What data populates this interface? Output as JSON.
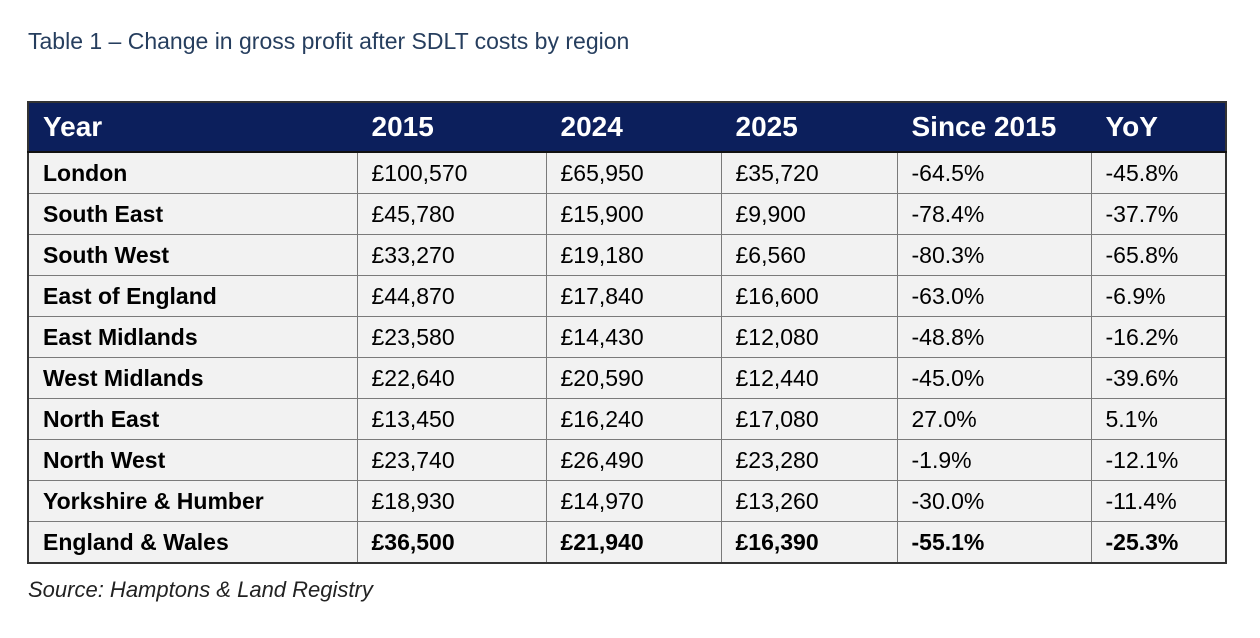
{
  "title": "Table 1 – Change in gross profit after SDLT costs by region",
  "headers": [
    "Year",
    "2015",
    "2024",
    "2025",
    "Since 2015",
    "YoY"
  ],
  "rows": [
    [
      "London",
      "£100,570",
      "£65,950",
      "£35,720",
      "-64.5%",
      "-45.8%"
    ],
    [
      "South East",
      "£45,780",
      "£15,900",
      "£9,900",
      "-78.4%",
      "-37.7%"
    ],
    [
      "South West",
      "£33,270",
      "£19,180",
      "£6,560",
      "-80.3%",
      "-65.8%"
    ],
    [
      "East of England",
      "£44,870",
      "£17,840",
      "£16,600",
      "-63.0%",
      "-6.9%"
    ],
    [
      "East Midlands",
      "£23,580",
      "£14,430",
      "£12,080",
      "-48.8%",
      "-16.2%"
    ],
    [
      "West Midlands",
      "£22,640",
      "£20,590",
      "£12,440",
      "-45.0%",
      "-39.6%"
    ],
    [
      "North East",
      "£13,450",
      "£16,240",
      "£17,080",
      "27.0%",
      "5.1%"
    ],
    [
      "North West",
      "£23,740",
      "£26,490",
      "£23,280",
      "-1.9%",
      "-12.1%"
    ],
    [
      "Yorkshire & Humber",
      "£18,930",
      "£14,970",
      "£13,260",
      "-30.0%",
      "-11.4%"
    ],
    [
      "England & Wales",
      "£36,500",
      "£21,940",
      "£16,390",
      "-55.1%",
      "-25.3%"
    ]
  ],
  "source": "Source: Hamptons & Land Registry",
  "colors": {
    "header_bg": "#0c1f5c",
    "title": "#263e5e",
    "cell_bg": "#f2f2f2"
  }
}
